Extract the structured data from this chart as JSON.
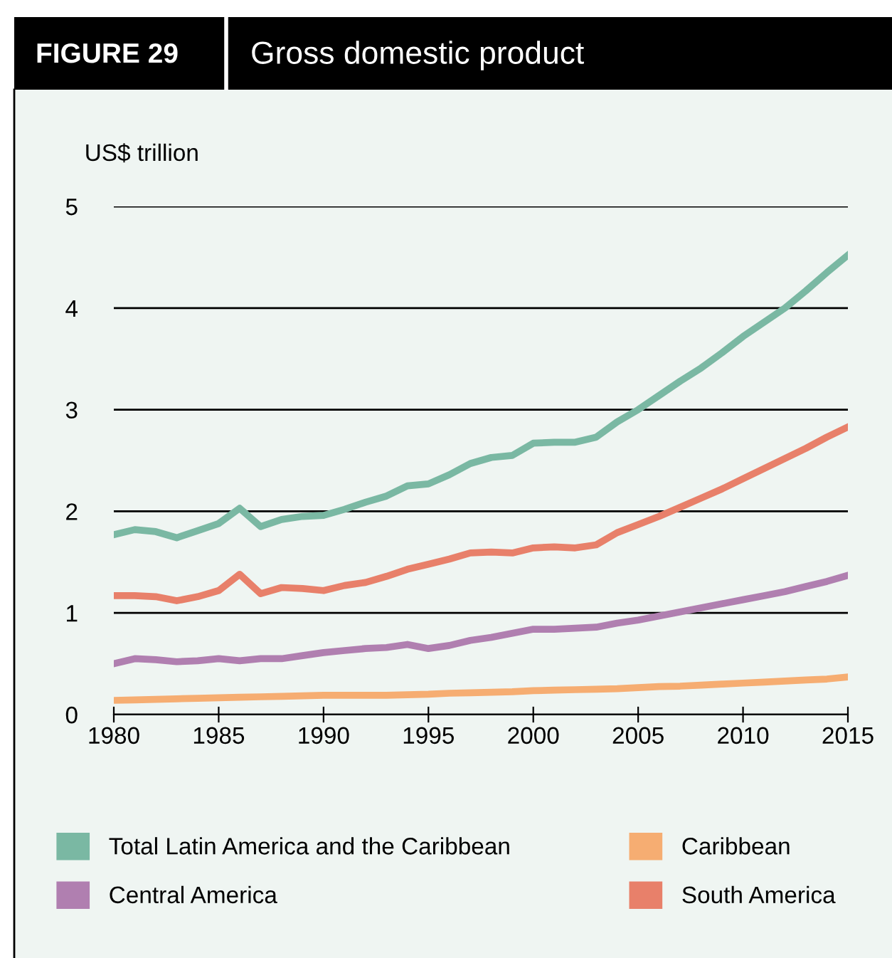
{
  "chart_data": {
    "type": "line",
    "title": "Gross domestic product",
    "subtitle": "FIGURE 29",
    "ylabel": "US$ trillion",
    "x": [
      1980,
      1981,
      1982,
      1983,
      1984,
      1985,
      1986,
      1987,
      1988,
      1989,
      1990,
      1991,
      1992,
      1993,
      1994,
      1995,
      1996,
      1997,
      1998,
      1999,
      2000,
      2001,
      2002,
      2003,
      2004,
      2005,
      2006,
      2007,
      2008,
      2009,
      2010,
      2011,
      2012,
      2013,
      2014,
      2015
    ],
    "series": [
      {
        "name": "Total Latin America and the Caribbean",
        "color": "#7ab8a3",
        "values": [
          1.77,
          1.82,
          1.8,
          1.74,
          1.81,
          1.88,
          2.03,
          1.85,
          1.92,
          1.95,
          1.96,
          2.02,
          2.09,
          2.15,
          2.25,
          2.27,
          2.36,
          2.47,
          2.53,
          2.55,
          2.67,
          2.68,
          2.68,
          2.73,
          2.88,
          3.0,
          3.14,
          3.28,
          3.41,
          3.56,
          3.72,
          3.86,
          4.0,
          4.17,
          4.35,
          4.52
        ]
      },
      {
        "name": "Central America",
        "color": "#b07fb0",
        "values": [
          0.5,
          0.55,
          0.54,
          0.52,
          0.53,
          0.55,
          0.53,
          0.55,
          0.55,
          0.58,
          0.61,
          0.63,
          0.65,
          0.66,
          0.69,
          0.65,
          0.68,
          0.73,
          0.76,
          0.8,
          0.84,
          0.84,
          0.85,
          0.86,
          0.9,
          0.93,
          0.97,
          1.01,
          1.05,
          1.09,
          1.13,
          1.17,
          1.21,
          1.26,
          1.31,
          1.37
        ]
      },
      {
        "name": "Caribbean",
        "color": "#f6ad72",
        "values": [
          0.14,
          0.145,
          0.15,
          0.155,
          0.16,
          0.165,
          0.17,
          0.175,
          0.18,
          0.185,
          0.19,
          0.19,
          0.19,
          0.19,
          0.195,
          0.2,
          0.21,
          0.215,
          0.22,
          0.225,
          0.235,
          0.24,
          0.245,
          0.25,
          0.255,
          0.265,
          0.275,
          0.28,
          0.29,
          0.3,
          0.31,
          0.32,
          0.33,
          0.34,
          0.35,
          0.37
        ]
      },
      {
        "name": "South America",
        "color": "#e8806a",
        "values": [
          1.17,
          1.17,
          1.16,
          1.12,
          1.16,
          1.22,
          1.38,
          1.19,
          1.25,
          1.24,
          1.22,
          1.27,
          1.3,
          1.36,
          1.43,
          1.48,
          1.53,
          1.59,
          1.6,
          1.59,
          1.64,
          1.65,
          1.64,
          1.67,
          1.79,
          1.87,
          1.95,
          2.04,
          2.13,
          2.22,
          2.32,
          2.42,
          2.52,
          2.62,
          2.73,
          2.83
        ]
      }
    ],
    "xlim": [
      1980,
      2015
    ],
    "xticks": [
      1980,
      1985,
      1990,
      1995,
      2000,
      2005,
      2010,
      2015
    ],
    "ylim": [
      0,
      5
    ],
    "yticks": [
      0,
      1,
      2,
      3,
      4,
      5
    ],
    "grid": "y",
    "legend": "bottom",
    "line_style": "solid",
    "marker": "none"
  }
}
